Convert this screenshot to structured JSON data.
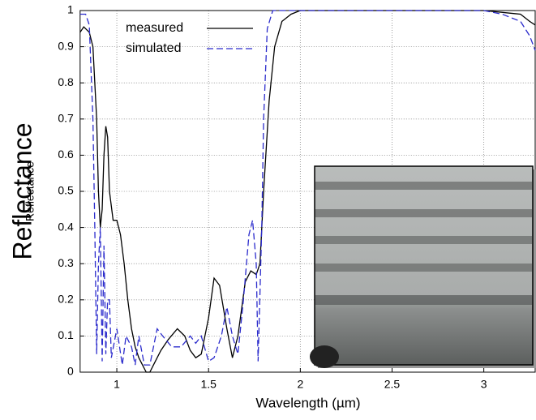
{
  "chart_data": {
    "type": "line",
    "xlabel": "Wavelength (µm)",
    "ylabel": "Reflectance",
    "xlim": [
      0.8,
      3.28
    ],
    "ylim": [
      0,
      1
    ],
    "xticks": [
      1,
      1.5,
      2,
      2.5,
      3
    ],
    "yticks": [
      0,
      0.1,
      0.2,
      0.3,
      0.4,
      0.5,
      0.6,
      0.7,
      0.8,
      0.9,
      1
    ],
    "grid": true,
    "legend": "upper left",
    "series": [
      {
        "name": "measured",
        "color": "#000000",
        "dash": "solid",
        "x": [
          0.8,
          0.82,
          0.85,
          0.87,
          0.89,
          0.9,
          0.91,
          0.92,
          0.93,
          0.94,
          0.95,
          0.96,
          0.98,
          1.0,
          1.02,
          1.04,
          1.06,
          1.08,
          1.1,
          1.12,
          1.14,
          1.16,
          1.18,
          1.2,
          1.24,
          1.28,
          1.33,
          1.37,
          1.4,
          1.43,
          1.46,
          1.5,
          1.53,
          1.56,
          1.6,
          1.63,
          1.66,
          1.7,
          1.73,
          1.76,
          1.78,
          1.8,
          1.83,
          1.86,
          1.9,
          1.95,
          2.0,
          2.5,
          3.0,
          3.2,
          3.25,
          3.28
        ],
        "values": [
          0.94,
          0.955,
          0.94,
          0.9,
          0.7,
          0.5,
          0.4,
          0.45,
          0.6,
          0.68,
          0.65,
          0.5,
          0.42,
          0.42,
          0.38,
          0.3,
          0.2,
          0.12,
          0.07,
          0.04,
          0.02,
          0,
          0,
          0.02,
          0.06,
          0.09,
          0.12,
          0.1,
          0.06,
          0.04,
          0.05,
          0.15,
          0.26,
          0.24,
          0.12,
          0.04,
          0.1,
          0.25,
          0.28,
          0.27,
          0.3,
          0.5,
          0.75,
          0.9,
          0.97,
          0.99,
          1,
          1,
          1,
          0.99,
          0.97,
          0.96
        ]
      },
      {
        "name": "simulated",
        "color": "#2b2bcc",
        "dash": "dashed",
        "x": [
          0.8,
          0.83,
          0.85,
          0.87,
          0.88,
          0.89,
          0.9,
          0.91,
          0.92,
          0.93,
          0.94,
          0.95,
          0.96,
          0.97,
          1.0,
          1.03,
          1.05,
          1.08,
          1.1,
          1.12,
          1.15,
          1.18,
          1.22,
          1.25,
          1.3,
          1.35,
          1.4,
          1.43,
          1.46,
          1.5,
          1.53,
          1.57,
          1.6,
          1.63,
          1.66,
          1.69,
          1.72,
          1.74,
          1.76,
          1.77,
          1.79,
          1.8,
          1.82,
          1.85,
          2.0,
          3.0,
          3.1,
          3.2,
          3.25,
          3.28
        ],
        "values": [
          0.99,
          0.99,
          0.96,
          0.7,
          0.4,
          0.05,
          0.3,
          0.4,
          0.03,
          0.35,
          0.05,
          0.2,
          0.2,
          0.04,
          0.12,
          0.02,
          0.1,
          0.07,
          0.02,
          0.1,
          0.02,
          0.02,
          0.12,
          0.1,
          0.07,
          0.07,
          0.1,
          0.08,
          0.1,
          0.03,
          0.04,
          0.1,
          0.18,
          0.1,
          0.05,
          0.2,
          0.38,
          0.42,
          0.3,
          0.03,
          0.4,
          0.7,
          0.95,
          1,
          1,
          1,
          0.99,
          0.97,
          0.93,
          0.89
        ]
      }
    ]
  }
}
